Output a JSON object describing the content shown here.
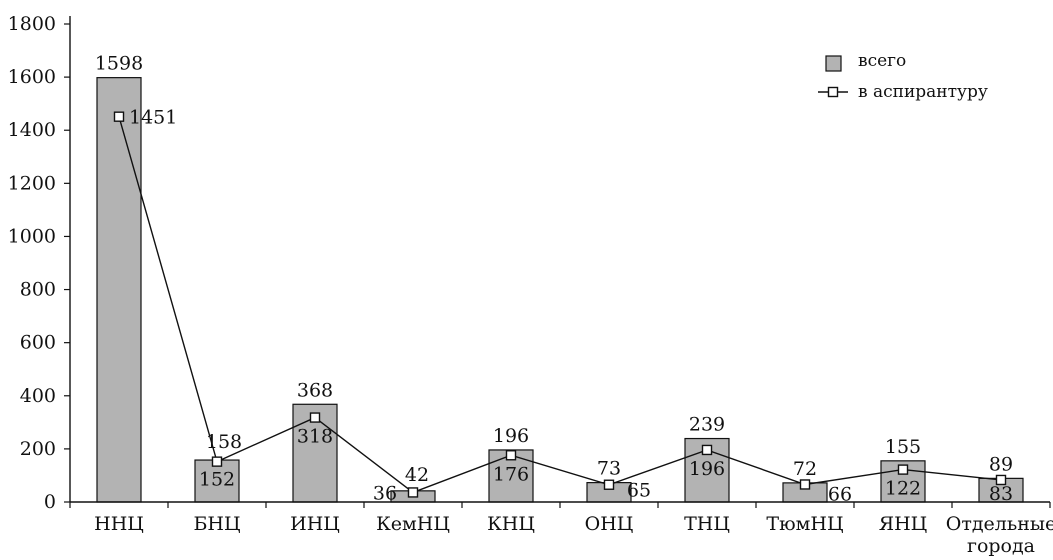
{
  "chart_data": {
    "type": "bar",
    "title": "",
    "xlabel": "",
    "ylabel": "",
    "ylim": [
      0,
      1800
    ],
    "yticks": [
      0,
      200,
      400,
      600,
      800,
      1000,
      1200,
      1400,
      1600,
      1800
    ],
    "categories": [
      "ННЦ",
      "БНЦ",
      "ИНЦ",
      "КемНЦ",
      "КНЦ",
      "ОНЦ",
      "ТНЦ",
      "ТюмНЦ",
      "ЯНЦ",
      "Отдельные города"
    ],
    "series": [
      {
        "name": "всего",
        "type": "bar",
        "color": "#b3b3b3",
        "values": [
          1598,
          158,
          368,
          42,
          196,
          73,
          239,
          72,
          155,
          89
        ]
      },
      {
        "name": "в аспирантуру",
        "type": "line",
        "color": "#111111",
        "values": [
          1451,
          152,
          318,
          36,
          176,
          65,
          196,
          66,
          122,
          83
        ]
      }
    ],
    "legend_position": "top-right",
    "grid": false
  }
}
